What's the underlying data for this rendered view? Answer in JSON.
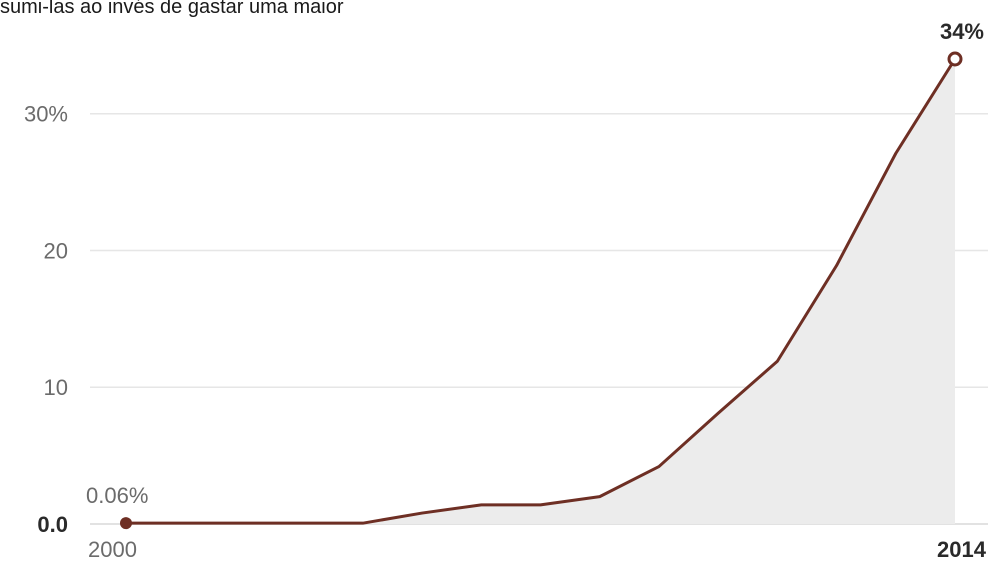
{
  "caption": "sumi-las ao invés de gastar uma maior",
  "colors": {
    "line": "#6e2f24",
    "area": "#ececec",
    "grid": "#e6e6e6"
  },
  "chart_data": {
    "type": "area",
    "title": "",
    "xlabel": "",
    "ylabel": "",
    "x": [
      2000,
      2001,
      2002,
      2003,
      2004,
      2005,
      2006,
      2007,
      2008,
      2009,
      2010,
      2011,
      2012,
      2013,
      2014
    ],
    "series": [
      {
        "values": [
          0.06,
          0.06,
          0.06,
          0.06,
          0.06,
          0.8,
          1.4,
          1.4,
          2.0,
          4.2,
          8.1,
          11.9,
          18.9,
          27.1,
          34.0
        ]
      }
    ],
    "xlim": [
      2000,
      2014
    ],
    "ylim": [
      0,
      34
    ],
    "x_tick_labels": [
      {
        "x": 2000,
        "label": "2000"
      },
      {
        "x": 2014,
        "label": "2014"
      }
    ],
    "y_tick_labels": [
      {
        "y": 0,
        "label": "0.0"
      },
      {
        "y": 10,
        "label": "10"
      },
      {
        "y": 20,
        "label": "20"
      },
      {
        "y": 30,
        "label": "30%"
      }
    ],
    "annotations": [
      {
        "label": "0.06%",
        "x": 2000,
        "y": 0.06,
        "marker": "filled"
      },
      {
        "label": "34%",
        "x": 2014,
        "y": 34.0,
        "marker": "hollow"
      }
    ],
    "grid": true
  }
}
